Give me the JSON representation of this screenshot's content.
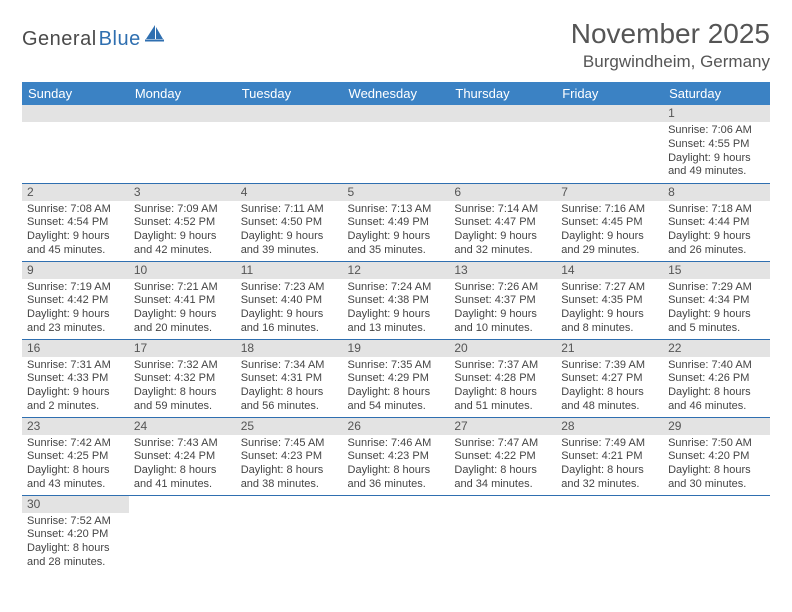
{
  "logo": {
    "word1": "General",
    "word2": "Blue"
  },
  "title": "November 2025",
  "location": "Burgwindheim, Germany",
  "colors": {
    "header_bg": "#3b82c4",
    "header_text": "#ffffff",
    "daynum_bg": "#e3e3e3",
    "row_divider": "#2f6fb0",
    "logo_dark": "#4a4a4a",
    "logo_blue": "#2f6fb0"
  },
  "weekdays": [
    "Sunday",
    "Monday",
    "Tuesday",
    "Wednesday",
    "Thursday",
    "Friday",
    "Saturday"
  ],
  "weeks": [
    [
      null,
      null,
      null,
      null,
      null,
      null,
      {
        "n": "1",
        "sr": "Sunrise: 7:06 AM",
        "ss": "Sunset: 4:55 PM",
        "dl1": "Daylight: 9 hours",
        "dl2": "and 49 minutes."
      }
    ],
    [
      {
        "n": "2",
        "sr": "Sunrise: 7:08 AM",
        "ss": "Sunset: 4:54 PM",
        "dl1": "Daylight: 9 hours",
        "dl2": "and 45 minutes."
      },
      {
        "n": "3",
        "sr": "Sunrise: 7:09 AM",
        "ss": "Sunset: 4:52 PM",
        "dl1": "Daylight: 9 hours",
        "dl2": "and 42 minutes."
      },
      {
        "n": "4",
        "sr": "Sunrise: 7:11 AM",
        "ss": "Sunset: 4:50 PM",
        "dl1": "Daylight: 9 hours",
        "dl2": "and 39 minutes."
      },
      {
        "n": "5",
        "sr": "Sunrise: 7:13 AM",
        "ss": "Sunset: 4:49 PM",
        "dl1": "Daylight: 9 hours",
        "dl2": "and 35 minutes."
      },
      {
        "n": "6",
        "sr": "Sunrise: 7:14 AM",
        "ss": "Sunset: 4:47 PM",
        "dl1": "Daylight: 9 hours",
        "dl2": "and 32 minutes."
      },
      {
        "n": "7",
        "sr": "Sunrise: 7:16 AM",
        "ss": "Sunset: 4:45 PM",
        "dl1": "Daylight: 9 hours",
        "dl2": "and 29 minutes."
      },
      {
        "n": "8",
        "sr": "Sunrise: 7:18 AM",
        "ss": "Sunset: 4:44 PM",
        "dl1": "Daylight: 9 hours",
        "dl2": "and 26 minutes."
      }
    ],
    [
      {
        "n": "9",
        "sr": "Sunrise: 7:19 AM",
        "ss": "Sunset: 4:42 PM",
        "dl1": "Daylight: 9 hours",
        "dl2": "and 23 minutes."
      },
      {
        "n": "10",
        "sr": "Sunrise: 7:21 AM",
        "ss": "Sunset: 4:41 PM",
        "dl1": "Daylight: 9 hours",
        "dl2": "and 20 minutes."
      },
      {
        "n": "11",
        "sr": "Sunrise: 7:23 AM",
        "ss": "Sunset: 4:40 PM",
        "dl1": "Daylight: 9 hours",
        "dl2": "and 16 minutes."
      },
      {
        "n": "12",
        "sr": "Sunrise: 7:24 AM",
        "ss": "Sunset: 4:38 PM",
        "dl1": "Daylight: 9 hours",
        "dl2": "and 13 minutes."
      },
      {
        "n": "13",
        "sr": "Sunrise: 7:26 AM",
        "ss": "Sunset: 4:37 PM",
        "dl1": "Daylight: 9 hours",
        "dl2": "and 10 minutes."
      },
      {
        "n": "14",
        "sr": "Sunrise: 7:27 AM",
        "ss": "Sunset: 4:35 PM",
        "dl1": "Daylight: 9 hours",
        "dl2": "and 8 minutes."
      },
      {
        "n": "15",
        "sr": "Sunrise: 7:29 AM",
        "ss": "Sunset: 4:34 PM",
        "dl1": "Daylight: 9 hours",
        "dl2": "and 5 minutes."
      }
    ],
    [
      {
        "n": "16",
        "sr": "Sunrise: 7:31 AM",
        "ss": "Sunset: 4:33 PM",
        "dl1": "Daylight: 9 hours",
        "dl2": "and 2 minutes."
      },
      {
        "n": "17",
        "sr": "Sunrise: 7:32 AM",
        "ss": "Sunset: 4:32 PM",
        "dl1": "Daylight: 8 hours",
        "dl2": "and 59 minutes."
      },
      {
        "n": "18",
        "sr": "Sunrise: 7:34 AM",
        "ss": "Sunset: 4:31 PM",
        "dl1": "Daylight: 8 hours",
        "dl2": "and 56 minutes."
      },
      {
        "n": "19",
        "sr": "Sunrise: 7:35 AM",
        "ss": "Sunset: 4:29 PM",
        "dl1": "Daylight: 8 hours",
        "dl2": "and 54 minutes."
      },
      {
        "n": "20",
        "sr": "Sunrise: 7:37 AM",
        "ss": "Sunset: 4:28 PM",
        "dl1": "Daylight: 8 hours",
        "dl2": "and 51 minutes."
      },
      {
        "n": "21",
        "sr": "Sunrise: 7:39 AM",
        "ss": "Sunset: 4:27 PM",
        "dl1": "Daylight: 8 hours",
        "dl2": "and 48 minutes."
      },
      {
        "n": "22",
        "sr": "Sunrise: 7:40 AM",
        "ss": "Sunset: 4:26 PM",
        "dl1": "Daylight: 8 hours",
        "dl2": "and 46 minutes."
      }
    ],
    [
      {
        "n": "23",
        "sr": "Sunrise: 7:42 AM",
        "ss": "Sunset: 4:25 PM",
        "dl1": "Daylight: 8 hours",
        "dl2": "and 43 minutes."
      },
      {
        "n": "24",
        "sr": "Sunrise: 7:43 AM",
        "ss": "Sunset: 4:24 PM",
        "dl1": "Daylight: 8 hours",
        "dl2": "and 41 minutes."
      },
      {
        "n": "25",
        "sr": "Sunrise: 7:45 AM",
        "ss": "Sunset: 4:23 PM",
        "dl1": "Daylight: 8 hours",
        "dl2": "and 38 minutes."
      },
      {
        "n": "26",
        "sr": "Sunrise: 7:46 AM",
        "ss": "Sunset: 4:23 PM",
        "dl1": "Daylight: 8 hours",
        "dl2": "and 36 minutes."
      },
      {
        "n": "27",
        "sr": "Sunrise: 7:47 AM",
        "ss": "Sunset: 4:22 PM",
        "dl1": "Daylight: 8 hours",
        "dl2": "and 34 minutes."
      },
      {
        "n": "28",
        "sr": "Sunrise: 7:49 AM",
        "ss": "Sunset: 4:21 PM",
        "dl1": "Daylight: 8 hours",
        "dl2": "and 32 minutes."
      },
      {
        "n": "29",
        "sr": "Sunrise: 7:50 AM",
        "ss": "Sunset: 4:20 PM",
        "dl1": "Daylight: 8 hours",
        "dl2": "and 30 minutes."
      }
    ],
    [
      {
        "n": "30",
        "sr": "Sunrise: 7:52 AM",
        "ss": "Sunset: 4:20 PM",
        "dl1": "Daylight: 8 hours",
        "dl2": "and 28 minutes."
      },
      null,
      null,
      null,
      null,
      null,
      null
    ]
  ]
}
